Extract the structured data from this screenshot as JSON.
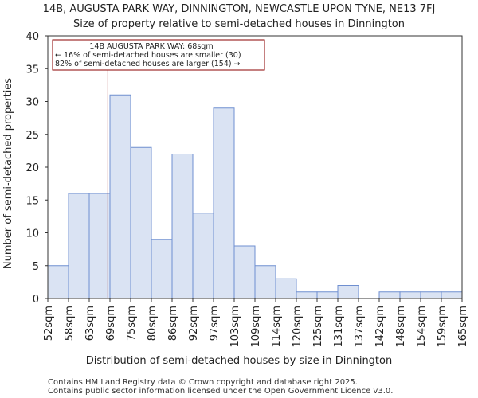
{
  "chart_data": {
    "type": "bar",
    "title": "14B, AUGUSTA PARK WAY, DINNINGTON, NEWCASTLE UPON TYNE, NE13 7FJ",
    "subtitle": "Size of property relative to semi-detached houses in Dinnington",
    "xlabel": "Distribution of semi-detached houses by size in Dinnington",
    "ylabel": "Number of semi-detached properties",
    "ylim": [
      0,
      40
    ],
    "yticks": [
      0,
      5,
      10,
      15,
      20,
      25,
      30,
      35,
      40
    ],
    "bin_labels": [
      "52sqm",
      "58sqm",
      "63sqm",
      "69sqm",
      "75sqm",
      "80sqm",
      "86sqm",
      "92sqm",
      "97sqm",
      "103sqm",
      "109sqm",
      "114sqm",
      "120sqm",
      "125sqm",
      "131sqm",
      "137sqm",
      "142sqm",
      "148sqm",
      "154sqm",
      "159sqm",
      "165sqm"
    ],
    "values": [
      5,
      16,
      16,
      31,
      23,
      9,
      22,
      13,
      29,
      8,
      5,
      3,
      1,
      1,
      2,
      0,
      1,
      1,
      1,
      1
    ],
    "marker": {
      "value_sqm": 68,
      "bin_position": 2.9
    },
    "annotation": {
      "line1": "14B AUGUSTA PARK WAY: 68sqm",
      "line2": "← 16% of semi-detached houses are smaller (30)",
      "line3": "82% of semi-detached houses are larger (154) →"
    },
    "grid": false,
    "colors": {
      "bar_fill": "#dae3f3",
      "bar_edge": "#6f8fd0",
      "marker": "#8b0000"
    }
  },
  "footer": {
    "line1": "Contains HM Land Registry data © Crown copyright and database right 2025.",
    "line2": "Contains public sector information licensed under the Open Government Licence v3.0."
  }
}
